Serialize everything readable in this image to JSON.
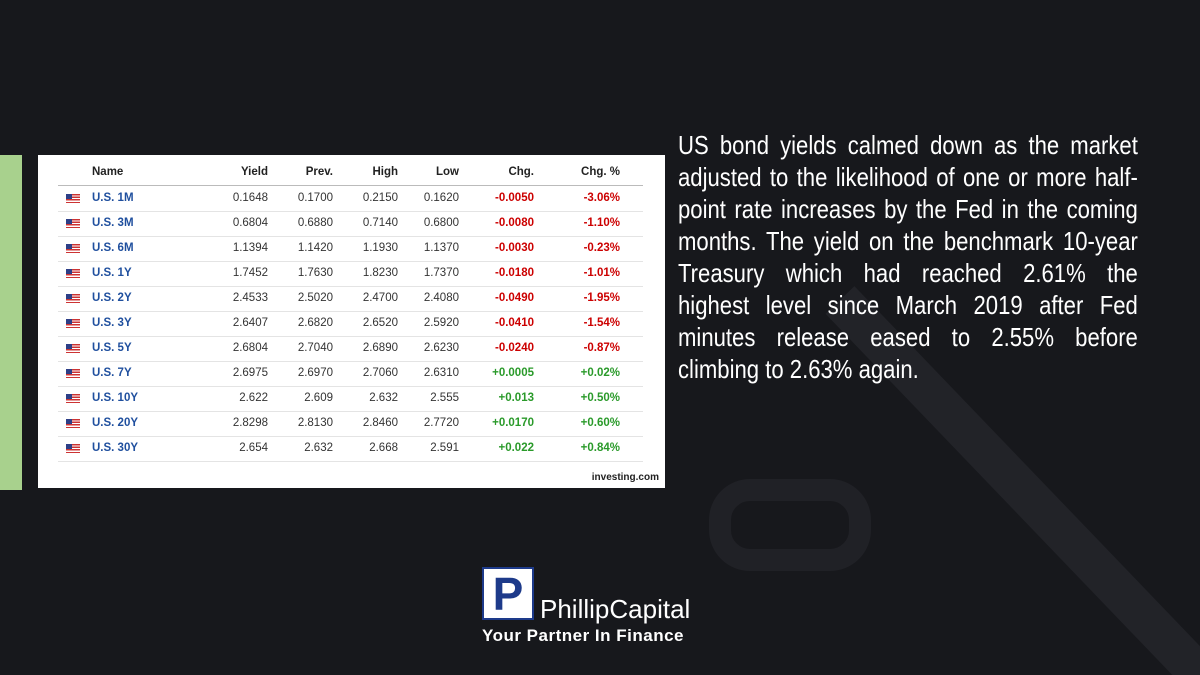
{
  "table": {
    "columns": [
      "Name",
      "Yield",
      "Prev.",
      "High",
      "Low",
      "Chg.",
      "Chg. %"
    ],
    "rows": [
      [
        "U.S. 1M",
        "0.1648",
        "0.1700",
        "0.2150",
        "0.1620",
        "-0.0050",
        "-3.06%"
      ],
      [
        "U.S. 3M",
        "0.6804",
        "0.6880",
        "0.7140",
        "0.6800",
        "-0.0080",
        "-1.10%"
      ],
      [
        "U.S. 6M",
        "1.1394",
        "1.1420",
        "1.1930",
        "1.1370",
        "-0.0030",
        "-0.23%"
      ],
      [
        "U.S. 1Y",
        "1.7452",
        "1.7630",
        "1.8230",
        "1.7370",
        "-0.0180",
        "-1.01%"
      ],
      [
        "U.S. 2Y",
        "2.4533",
        "2.5020",
        "2.4700",
        "2.4080",
        "-0.0490",
        "-1.95%"
      ],
      [
        "U.S. 3Y",
        "2.6407",
        "2.6820",
        "2.6520",
        "2.5920",
        "-0.0410",
        "-1.54%"
      ],
      [
        "U.S. 5Y",
        "2.6804",
        "2.7040",
        "2.6890",
        "2.6230",
        "-0.0240",
        "-0.87%"
      ],
      [
        "U.S. 7Y",
        "2.6975",
        "2.6970",
        "2.7060",
        "2.6310",
        "+0.0005",
        "+0.02%"
      ],
      [
        "U.S. 10Y",
        "2.622",
        "2.609",
        "2.632",
        "2.555",
        "+0.013",
        "+0.50%"
      ],
      [
        "U.S. 20Y",
        "2.8298",
        "2.8130",
        "2.8460",
        "2.7720",
        "+0.0170",
        "+0.60%"
      ],
      [
        "U.S. 30Y",
        "2.654",
        "2.632",
        "2.668",
        "2.591",
        "+0.022",
        "+0.84%"
      ]
    ],
    "source": "investing.com"
  },
  "article": {
    "text": "US bond yields calmed down as the market adjusted to the likelihood of one or more half-point rate increases by the Fed in the coming months. The yield on the benchmark 10-year Treasury which had reached 2.61% the highest level since March 2019 after Fed minutes release eased to 2.55% before climbing to 2.63% again."
  },
  "logo": {
    "mark": "P",
    "name": "PhillipCapital",
    "tagline": "Your Partner In Finance"
  }
}
